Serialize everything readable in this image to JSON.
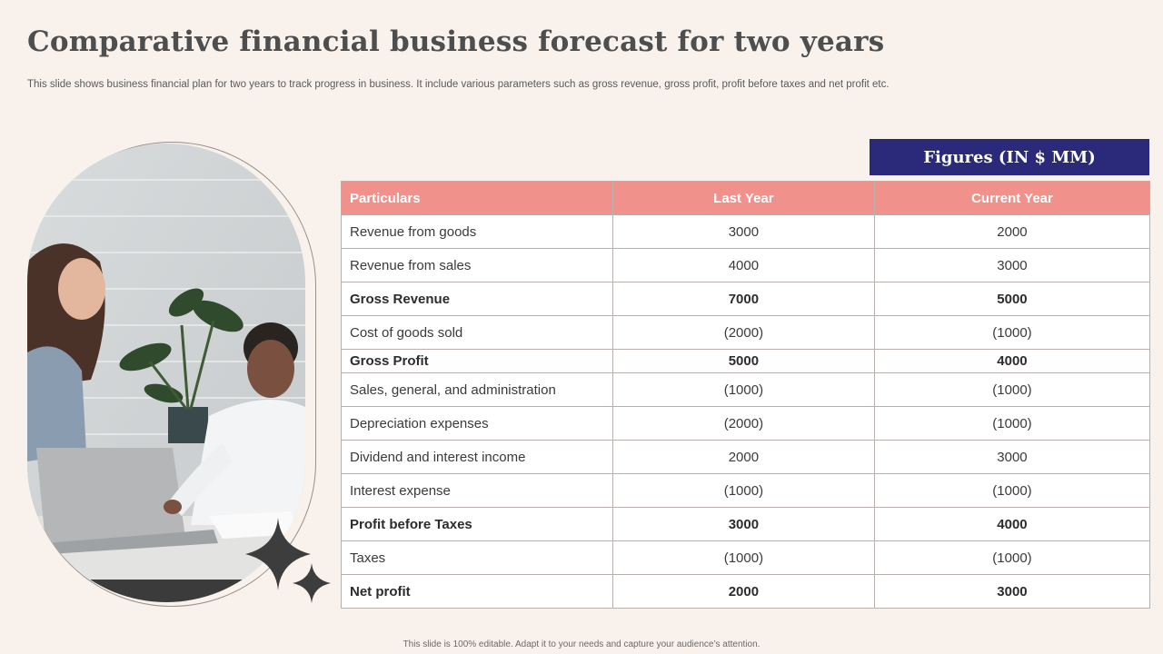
{
  "slide": {
    "title": "Comparative financial business forecast for two years",
    "subtitle": "This slide shows business financial plan for two years to track progress in business. It include various parameters such as gross revenue, gross profit, profit before taxes and net profit etc.",
    "footer": "This slide is 100% editable.  Adapt it to your needs and capture your audience’s attention."
  },
  "figures_label": "Figures (IN $ MM)",
  "table": {
    "headers": [
      "Particulars",
      "Last Year",
      "Current Year"
    ],
    "rows": [
      {
        "label": "Revenue from goods",
        "last": "3000",
        "current": "2000",
        "bold": false
      },
      {
        "label": "Revenue from sales",
        "last": "4000",
        "current": "3000",
        "bold": false
      },
      {
        "label": "Gross Revenue",
        "last": "7000",
        "current": "5000",
        "bold": true
      },
      {
        "label": "Cost of goods sold",
        "last": "(2000)",
        "current": "(1000)",
        "bold": false
      },
      {
        "label": "Gross Profit",
        "last": "5000",
        "current": "4000",
        "bold": true
      },
      {
        "label": "Sales, general, and administration",
        "last": "(1000)",
        "current": "(1000)",
        "bold": false
      },
      {
        "label": "Depreciation expenses",
        "last": "(2000)",
        "current": "(1000)",
        "bold": false
      },
      {
        "label": "Dividend and interest income",
        "last": "2000",
        "current": "3000",
        "bold": false
      },
      {
        "label": "Interest expense",
        "last": "(1000)",
        "current": "(1000)",
        "bold": false
      },
      {
        "label": "Profit before Taxes",
        "last": "3000",
        "current": "4000",
        "bold": true
      },
      {
        "label": "Taxes",
        "last": "(1000)",
        "current": "(1000)",
        "bold": false
      },
      {
        "label": "Net profit",
        "last": "2000",
        "current": "3000",
        "bold": true
      }
    ]
  },
  "colors": {
    "background": "#f8f1ec",
    "header_fill": "#f0928b",
    "figures_box": "#2b2a7a",
    "title": "#4e4e4e"
  },
  "icons": [
    "four-point-star-icon",
    "four-point-star-small-icon"
  ]
}
